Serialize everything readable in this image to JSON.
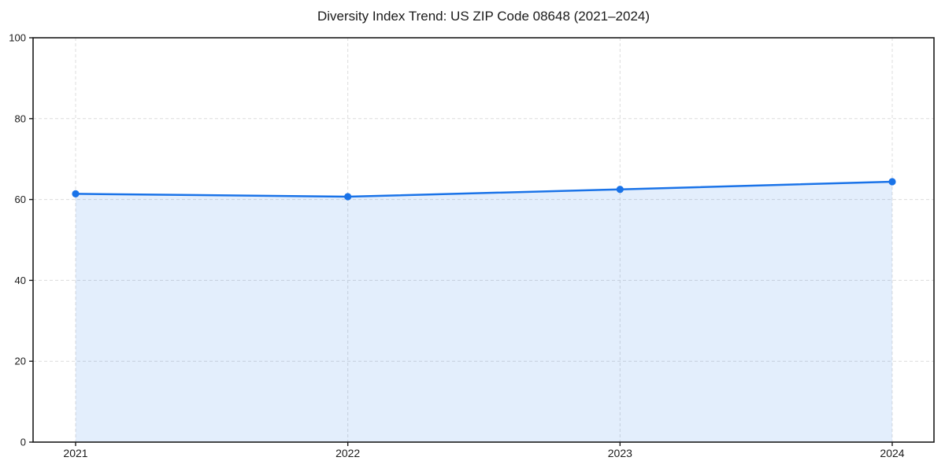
{
  "chart_data": {
    "type": "area",
    "title": "Diversity Index Trend: US ZIP Code 08648 (2021–2024)",
    "categories": [
      "2021",
      "2022",
      "2023",
      "2024"
    ],
    "series": [
      {
        "name": "Diversity Index",
        "values": [
          61.4,
          60.7,
          62.5,
          64.4
        ]
      }
    ],
    "xlabel": "",
    "ylabel": "",
    "ylim": [
      0,
      100
    ],
    "yticks": [
      0,
      20,
      40,
      60,
      80,
      100
    ],
    "grid": true,
    "grid_style": "dashed",
    "legend_position": "none",
    "marker": "circle",
    "colors": {
      "line": "#1a73e8",
      "marker": "#1a73e8",
      "fill": "rgba(26,115,232,0.12)",
      "grid": "#dcdcdc",
      "spine": "#1a1a1a",
      "text": "#1a1a1a",
      "background": "#ffffff"
    }
  }
}
